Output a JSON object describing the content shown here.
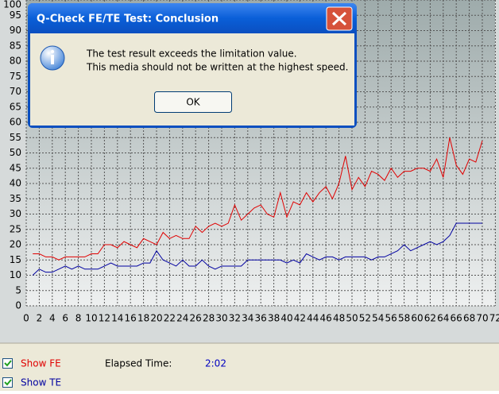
{
  "chart_data": {
    "type": "line",
    "x": [
      1,
      2,
      3,
      4,
      5,
      6,
      7,
      8,
      9,
      10,
      11,
      12,
      13,
      14,
      15,
      16,
      17,
      18,
      19,
      20,
      21,
      22,
      23,
      24,
      25,
      26,
      27,
      28,
      29,
      30,
      31,
      32,
      33,
      34,
      35,
      36,
      37,
      38,
      39,
      40,
      41,
      42,
      43,
      44,
      45,
      46,
      47,
      48,
      49,
      50,
      51,
      52,
      53,
      54,
      55,
      56,
      57,
      58,
      59,
      60,
      61,
      62,
      63,
      64,
      65,
      66,
      67,
      68,
      69,
      70
    ],
    "series": [
      {
        "name": "FE",
        "color": "#e00000",
        "values": [
          17,
          17,
          16,
          16,
          15,
          16,
          16,
          16,
          16,
          17,
          17,
          20,
          20,
          19,
          21,
          20,
          19,
          22,
          21,
          20,
          24,
          22,
          23,
          22,
          22,
          26,
          24,
          26,
          27,
          26,
          27,
          33,
          28,
          30,
          32,
          33,
          30,
          29,
          37,
          29,
          34,
          33,
          37,
          34,
          37,
          39,
          35,
          40,
          49,
          38,
          42,
          39,
          44,
          43,
          41,
          45,
          42,
          44,
          44,
          45,
          45,
          44,
          48,
          42,
          55,
          46,
          43,
          48,
          47,
          54
        ]
      },
      {
        "name": "TE",
        "color": "#0000a0",
        "values": [
          10,
          12,
          11,
          11,
          12,
          13,
          12,
          13,
          12,
          12,
          12,
          13,
          14,
          13,
          13,
          13,
          13,
          14,
          14,
          18,
          15,
          14,
          13,
          15,
          13,
          13,
          15,
          13,
          12,
          13,
          13,
          13,
          13,
          15,
          15,
          15,
          15,
          15,
          15,
          14,
          15,
          14,
          17,
          16,
          15,
          16,
          16,
          15,
          16,
          16,
          16,
          16,
          15,
          16,
          16,
          17,
          18,
          20,
          18,
          19,
          20,
          21,
          20,
          21,
          23,
          27,
          27,
          27,
          27,
          27
        ]
      }
    ],
    "xlim": [
      0,
      72
    ],
    "ylim": [
      0,
      100
    ],
    "xticks": [
      0,
      2,
      4,
      6,
      8,
      10,
      12,
      14,
      16,
      18,
      20,
      22,
      24,
      26,
      28,
      30,
      32,
      34,
      36,
      38,
      40,
      42,
      44,
      46,
      48,
      50,
      52,
      54,
      56,
      58,
      60,
      62,
      64,
      66,
      68,
      70,
      72
    ],
    "yticks": [
      0,
      5,
      10,
      15,
      20,
      25,
      30,
      35,
      40,
      45,
      50,
      55,
      60,
      65,
      70,
      75,
      80,
      85,
      90,
      95,
      100
    ],
    "grid": true
  },
  "dialog": {
    "title": "Q-Check FE/TE Test: Conclusion",
    "message": [
      "The test result exceeds the limitation value.",
      "This media should not be written at the highest speed."
    ],
    "button": "OK"
  },
  "controls": {
    "show_fe": "Show FE",
    "show_te": "Show TE",
    "elapsed_label": "Elapsed Time:",
    "elapsed_value": "2:02"
  }
}
